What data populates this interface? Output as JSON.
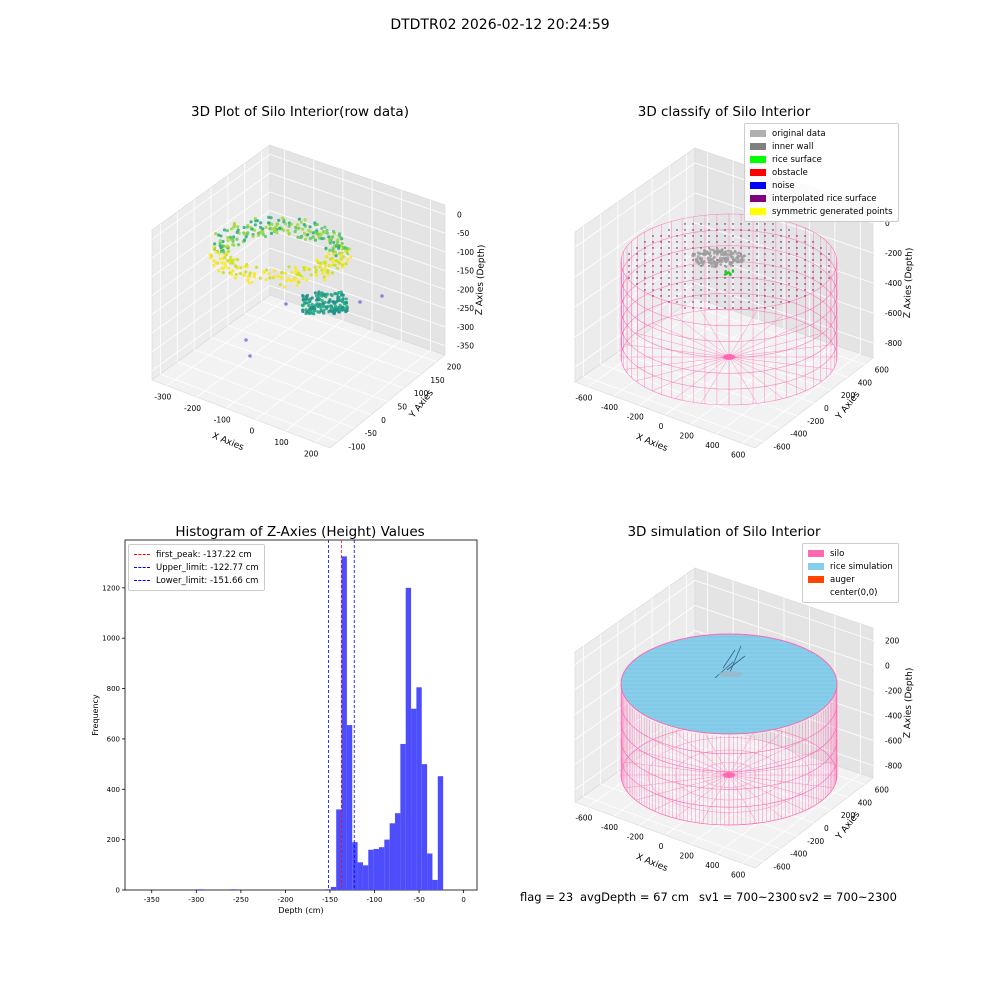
{
  "suptitle": "DTDTR02 2026-02-12 20:24:59",
  "chart_data": [
    {
      "type": "scatter",
      "projection": "3d",
      "title": "3D Plot of Silo Interior(row data)",
      "xlabel": "X Axies",
      "ylabel": "Y Axies",
      "zlabel": "Z Axies (Depth)",
      "xticks": [
        "-300",
        "-200",
        "-100",
        "0",
        "100",
        "200"
      ],
      "yticks": [
        "-100",
        "-50",
        "0",
        "50",
        "100",
        "150",
        "200"
      ],
      "zticks": [
        "0",
        "-50",
        "-100",
        "-150",
        "-200",
        "-250",
        "-300",
        "-350"
      ],
      "colormap": "viridis",
      "outliers": [
        {
          "x": -300,
          "y": -80,
          "z": -310
        },
        {
          "x": -290,
          "y": -90,
          "z": -330
        },
        {
          "x": 150,
          "y": 100,
          "z": -240
        },
        {
          "x": 190,
          "y": 130,
          "z": -230
        },
        {
          "x": -80,
          "y": -40,
          "z": -245
        }
      ]
    },
    {
      "type": "scatter",
      "projection": "3d",
      "title": "3D classify of Silo Interior",
      "xlabel": "X Axies",
      "ylabel": "Y Axies",
      "zlabel": "Z Axies (Depth)",
      "xticks": [
        "-600",
        "-400",
        "-200",
        "0",
        "200",
        "400",
        "600"
      ],
      "yticks": [
        "-600",
        "-400",
        "-200",
        "0",
        "200",
        "400",
        "600"
      ],
      "zticks": [
        "0",
        "-200",
        "-400",
        "-600",
        "-800"
      ],
      "legend_position": "upper right",
      "legend": [
        {
          "label": "original data",
          "color": "#b0b0b0"
        },
        {
          "label": "inner wall",
          "color": "#808080"
        },
        {
          "label": "rice surface",
          "color": "#00ff00"
        },
        {
          "label": "obstacle",
          "color": "#ff0000"
        },
        {
          "label": "noise",
          "color": "#0000ff"
        },
        {
          "label": "interpolated rice surface",
          "color": "#800080"
        },
        {
          "label": "symmetric generated points",
          "color": "#ffff00"
        }
      ]
    },
    {
      "type": "bar",
      "title": "Histogram of Z-Axies (Height) Values",
      "xlabel": "Depth (cm)",
      "ylabel": "Frequency",
      "xlim": [
        -380,
        15
      ],
      "ylim": [
        0,
        1390
      ],
      "xticks": [
        -350,
        -300,
        -250,
        -200,
        -150,
        -100,
        -50,
        0
      ],
      "yticks": [
        0,
        200,
        400,
        600,
        800,
        1000,
        1200
      ],
      "bar_color": "#4d4dfb",
      "bins": [
        {
          "x0": -300,
          "x1": -292,
          "v": 3
        },
        {
          "x0": -262,
          "x1": -255,
          "v": 3
        },
        {
          "x0": -155,
          "x1": -149,
          "v": 3
        },
        {
          "x0": -149,
          "x1": -143,
          "v": 12
        },
        {
          "x0": -143,
          "x1": -137,
          "v": 320
        },
        {
          "x0": -137,
          "x1": -131,
          "v": 1325
        },
        {
          "x0": -131,
          "x1": -125,
          "v": 655
        },
        {
          "x0": -125,
          "x1": -119,
          "v": 190
        },
        {
          "x0": -119,
          "x1": -113,
          "v": 110
        },
        {
          "x0": -113,
          "x1": -107,
          "v": 98
        },
        {
          "x0": -107,
          "x1": -101,
          "v": 160
        },
        {
          "x0": -101,
          "x1": -95,
          "v": 163
        },
        {
          "x0": -95,
          "x1": -89,
          "v": 170
        },
        {
          "x0": -89,
          "x1": -83,
          "v": 200
        },
        {
          "x0": -83,
          "x1": -77,
          "v": 265
        },
        {
          "x0": -77,
          "x1": -71,
          "v": 305
        },
        {
          "x0": -71,
          "x1": -65,
          "v": 580
        },
        {
          "x0": -65,
          "x1": -59,
          "v": 1200
        },
        {
          "x0": -59,
          "x1": -53,
          "v": 720
        },
        {
          "x0": -53,
          "x1": -47,
          "v": 805
        },
        {
          "x0": -47,
          "x1": -41,
          "v": 500
        },
        {
          "x0": -41,
          "x1": -35,
          "v": 145
        },
        {
          "x0": -35,
          "x1": -29,
          "v": 40
        },
        {
          "x0": -29,
          "x1": -23,
          "v": 452
        }
      ],
      "vlines": [
        {
          "label": "first_peak: -137.22 cm",
          "x": -137.22,
          "color": "#ff0000"
        },
        {
          "label": "Upper_limit: -122.77 cm",
          "x": -122.77,
          "color": "#0000ff"
        },
        {
          "label": "Lower_limit: -151.66 cm",
          "x": -151.66,
          "color": "#0000ff"
        }
      ],
      "legend_position": "upper left"
    },
    {
      "type": "scatter",
      "projection": "3d",
      "title": "3D simulation of Silo Interior",
      "xlabel": "X Axies",
      "ylabel": "Y Axies",
      "zlabel": "Z Axies (Depth)",
      "xticks": [
        "-600",
        "-400",
        "-200",
        "0",
        "200",
        "400",
        "600"
      ],
      "yticks": [
        "-600",
        "-400",
        "-200",
        "0",
        "200",
        "400",
        "600"
      ],
      "zticks": [
        "200",
        "0",
        "-200",
        "-400",
        "-600",
        "-800"
      ],
      "legend_position": "upper right",
      "legend": [
        {
          "label": "silo",
          "color": "#ff69b4"
        },
        {
          "label": "rice simulation",
          "color": "#87ceeb"
        },
        {
          "label": "auger",
          "color": "#ff4500"
        },
        {
          "label": "center(0,0)",
          "color": "#ffffff"
        }
      ]
    }
  ],
  "footer": {
    "flag": "flag = 23",
    "avgDepth": "avgDepth = 67 cm",
    "sv1": "sv1 = 700~2300",
    "sv2": "sv2 = 700~2300"
  }
}
